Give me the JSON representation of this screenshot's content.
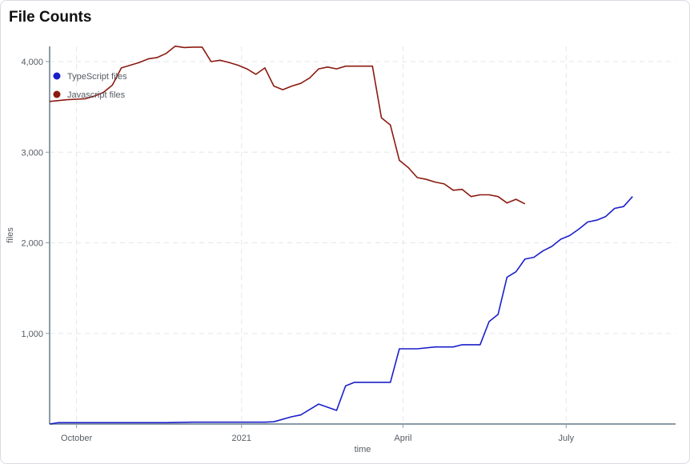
{
  "chart_data": {
    "type": "line",
    "title": "File Counts",
    "xlabel": "time",
    "ylabel": "files",
    "x_start": "2020-09-16",
    "x_end": "2021-08-31",
    "ylim": [
      0,
      4200
    ],
    "grid": true,
    "legend_position": "top-left",
    "y_ticks": [
      {
        "value": 1000,
        "label": "1,000"
      },
      {
        "value": 2000,
        "label": "2,000"
      },
      {
        "value": 3000,
        "label": "3,000"
      },
      {
        "value": 4000,
        "label": "4,000"
      }
    ],
    "x_ticks": [
      {
        "date": "2020-10-01",
        "label": "October"
      },
      {
        "date": "2021-01-01",
        "label": "2021"
      },
      {
        "date": "2021-04-01",
        "label": "April"
      },
      {
        "date": "2021-07-01",
        "label": "July"
      }
    ],
    "series": [
      {
        "name": "TypeScript files",
        "color": "#1a1fc9",
        "points": [
          [
            "2020-09-16",
            0
          ],
          [
            "2020-09-21",
            15
          ],
          [
            "2020-10-06",
            15
          ],
          [
            "2020-10-21",
            15
          ],
          [
            "2020-11-05",
            15
          ],
          [
            "2020-11-20",
            15
          ],
          [
            "2020-12-05",
            20
          ],
          [
            "2020-12-20",
            20
          ],
          [
            "2021-01-04",
            20
          ],
          [
            "2021-01-14",
            20
          ],
          [
            "2021-01-19",
            25
          ],
          [
            "2021-01-29",
            80
          ],
          [
            "2021-02-03",
            100
          ],
          [
            "2021-02-13",
            220
          ],
          [
            "2021-02-23",
            150
          ],
          [
            "2021-02-28",
            420
          ],
          [
            "2021-03-05",
            460
          ],
          [
            "2021-03-15",
            460
          ],
          [
            "2021-03-25",
            460
          ],
          [
            "2021-03-30",
            830
          ],
          [
            "2021-04-09",
            830
          ],
          [
            "2021-04-19",
            850
          ],
          [
            "2021-04-29",
            850
          ],
          [
            "2021-05-04",
            875
          ],
          [
            "2021-05-14",
            875
          ],
          [
            "2021-05-19",
            1130
          ],
          [
            "2021-05-24",
            1210
          ],
          [
            "2021-05-29",
            1620
          ],
          [
            "2021-06-03",
            1680
          ],
          [
            "2021-06-08",
            1820
          ],
          [
            "2021-06-13",
            1840
          ],
          [
            "2021-06-18",
            1910
          ],
          [
            "2021-06-23",
            1960
          ],
          [
            "2021-06-28",
            2040
          ],
          [
            "2021-07-03",
            2080
          ],
          [
            "2021-07-08",
            2150
          ],
          [
            "2021-07-13",
            2230
          ],
          [
            "2021-07-18",
            2250
          ],
          [
            "2021-07-23",
            2290
          ],
          [
            "2021-07-28",
            2380
          ],
          [
            "2021-08-02",
            2400
          ],
          [
            "2021-08-07",
            2510
          ]
        ]
      },
      {
        "name": "Javascript files",
        "color": "#8b1a10",
        "points": [
          [
            "2020-09-16",
            3560
          ],
          [
            "2020-09-21",
            3570
          ],
          [
            "2020-09-26",
            3580
          ],
          [
            "2020-10-01",
            3585
          ],
          [
            "2020-10-06",
            3590
          ],
          [
            "2020-10-11",
            3620
          ],
          [
            "2020-10-16",
            3660
          ],
          [
            "2020-10-21",
            3740
          ],
          [
            "2020-10-26",
            3930
          ],
          [
            "2020-10-31",
            3960
          ],
          [
            "2020-11-05",
            3990
          ],
          [
            "2020-11-10",
            4030
          ],
          [
            "2020-11-15",
            4045
          ],
          [
            "2020-11-20",
            4090
          ],
          [
            "2020-11-25",
            4170
          ],
          [
            "2020-11-30",
            4155
          ],
          [
            "2020-12-05",
            4160
          ],
          [
            "2020-12-10",
            4160
          ],
          [
            "2020-12-15",
            4000
          ],
          [
            "2020-12-20",
            4015
          ],
          [
            "2020-12-25",
            3990
          ],
          [
            "2020-12-30",
            3960
          ],
          [
            "2021-01-04",
            3920
          ],
          [
            "2021-01-09",
            3860
          ],
          [
            "2021-01-14",
            3930
          ],
          [
            "2021-01-19",
            3730
          ],
          [
            "2021-01-24",
            3690
          ],
          [
            "2021-01-29",
            3730
          ],
          [
            "2021-02-03",
            3760
          ],
          [
            "2021-02-08",
            3820
          ],
          [
            "2021-02-13",
            3920
          ],
          [
            "2021-02-18",
            3940
          ],
          [
            "2021-02-23",
            3920
          ],
          [
            "2021-02-28",
            3950
          ],
          [
            "2021-03-05",
            3950
          ],
          [
            "2021-03-10",
            3950
          ],
          [
            "2021-03-15",
            3950
          ],
          [
            "2021-03-20",
            3380
          ],
          [
            "2021-03-25",
            3300
          ],
          [
            "2021-03-30",
            2910
          ],
          [
            "2021-04-04",
            2830
          ],
          [
            "2021-04-09",
            2720
          ],
          [
            "2021-04-14",
            2700
          ],
          [
            "2021-04-19",
            2670
          ],
          [
            "2021-04-24",
            2650
          ],
          [
            "2021-04-29",
            2580
          ],
          [
            "2021-05-04",
            2590
          ],
          [
            "2021-05-09",
            2510
          ],
          [
            "2021-05-14",
            2530
          ],
          [
            "2021-05-19",
            2530
          ],
          [
            "2021-05-24",
            2510
          ],
          [
            "2021-05-29",
            2440
          ],
          [
            "2021-06-03",
            2480
          ],
          [
            "2021-06-08",
            2430
          ]
        ]
      }
    ]
  }
}
